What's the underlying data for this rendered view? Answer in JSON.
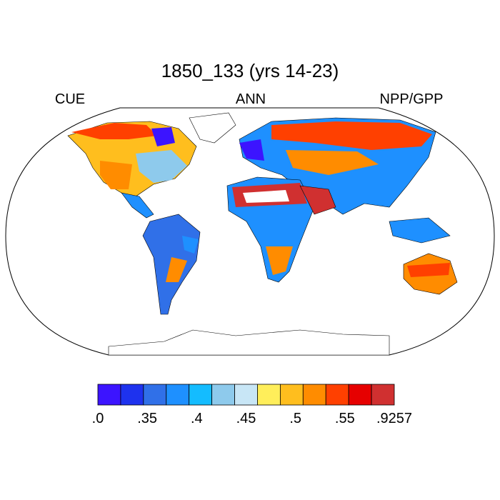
{
  "header": {
    "title": "1850_133 (yrs 14-23)",
    "left": "CUE",
    "center": "ANN",
    "right": "NPP/GPP"
  },
  "colorbar": {
    "colors": [
      "#3c14ff",
      "#1e32ee",
      "#3070e8",
      "#1e90ff",
      "#14bcff",
      "#8ecaec",
      "#c8e6f6",
      "#ffee5a",
      "#ffbe1e",
      "#ff8c00",
      "#ff4000",
      "#e60000",
      "#d03030"
    ],
    "labels": [
      ".0",
      ".35",
      ".4",
      ".45",
      ".5",
      ".55",
      ".9257"
    ]
  }
}
